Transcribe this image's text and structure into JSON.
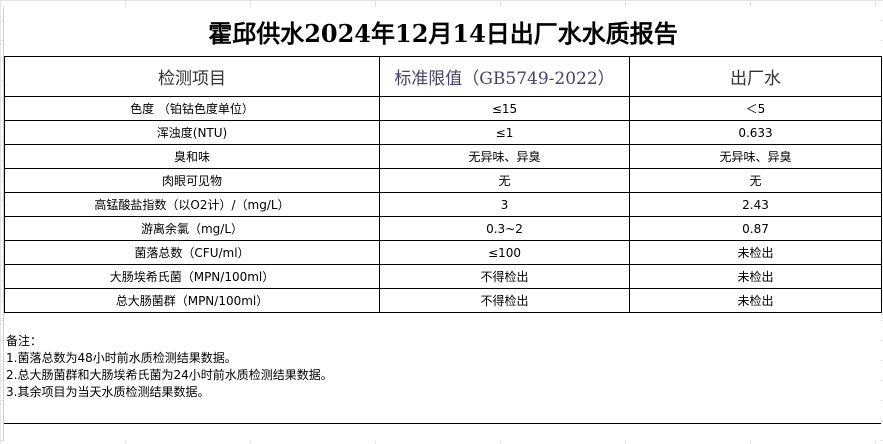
{
  "title": "霍邱供水2024年12月14日出厂水水质报告",
  "headers": [
    "检测项目",
    "标准限值（GB5749-2022）",
    "出厂水"
  ],
  "rows": [
    [
      "色度 （铂钴色度单位）",
      "≤15",
      "＜5"
    ],
    [
      "浑浊度(NTU)",
      "≤1",
      "0.633"
    ],
    [
      "臭和味",
      "无异味、异臭",
      "无异味、异臭"
    ],
    [
      "肉眼可见物",
      "无",
      "无"
    ],
    [
      "高锰酸盐指数（以O2计）/（mg/L）",
      "3",
      "2.43"
    ],
    [
      "游离余氯（mg/L）",
      "0.3~2",
      "0.87"
    ],
    [
      "菌落总数（CFU/ml）",
      "≤100",
      "未检出"
    ],
    [
      "大肠埃希氏菌（MPN/100ml）",
      "不得检出",
      "未检出"
    ],
    [
      "总大肠菌群（MPN/100ml）",
      "不得检出",
      "未检出"
    ]
  ],
  "notes": [
    "备注：",
    "1.菌落总数为48小时前水质检测结果数据。",
    "2.总大肠菌群和大肠埃希氏菌为24小时前水质检测结果数据。",
    "3.其余项目为当天水质检测结果数据。"
  ]
}
